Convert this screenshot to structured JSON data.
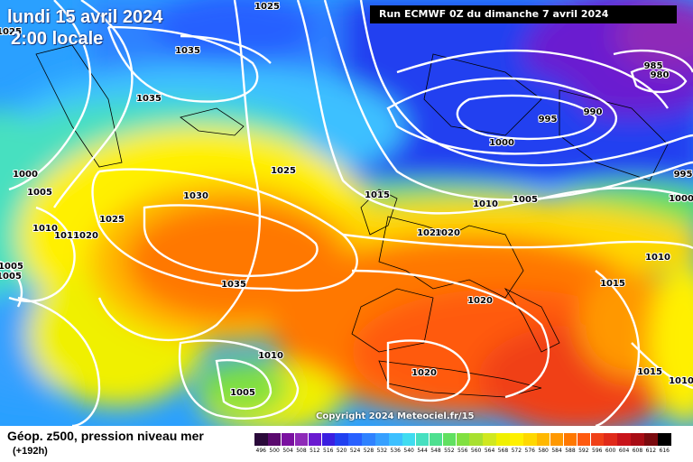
{
  "header": {
    "date_title": "lundi 15 avril 2024",
    "local_time": "2:00 locale",
    "run_info": "Run ECMWF 0Z du dimanche 7 avril 2024",
    "copyright": "Copyright 2024 Meteociel.fr/15"
  },
  "legend": {
    "title": "Géop. z500, pression niveau mer",
    "subtitle": "(+192h)",
    "scale_values": [
      "496",
      "500",
      "504",
      "508",
      "512",
      "516",
      "520",
      "524",
      "528",
      "532",
      "536",
      "540",
      "544",
      "548",
      "552",
      "556",
      "560",
      "564",
      "568",
      "572",
      "576",
      "580",
      "584",
      "588",
      "592",
      "596",
      "600",
      "604",
      "608",
      "612",
      "616"
    ],
    "scale_colors": [
      "#2a0a3a",
      "#5a0a6e",
      "#7a10a0",
      "#8e2ab8",
      "#6a1ad0",
      "#3a1ee0",
      "#2040f0",
      "#2860ff",
      "#2f82ff",
      "#36a0ff",
      "#3cc0ff",
      "#40dcf0",
      "#46e0c0",
      "#4ee090",
      "#60e060",
      "#80e040",
      "#a8e030",
      "#d0e820",
      "#f0f000",
      "#fff000",
      "#ffd800",
      "#ffb800",
      "#ff9800",
      "#ff7800",
      "#ff5a10",
      "#f04018",
      "#e02a1a",
      "#c8141a",
      "#a80c14",
      "#7a0a0e",
      "#000000"
    ]
  },
  "isobars": [
    {
      "label": "1025",
      "color": "#ffffff"
    },
    {
      "label": "1025",
      "color": "#ffffff"
    },
    {
      "label": "1035",
      "color": "#ffffff"
    },
    {
      "label": "1035",
      "color": "#ffffff"
    },
    {
      "label": "1000",
      "color": "#ffffff"
    },
    {
      "label": "1005",
      "color": "#ffffff"
    },
    {
      "label": "1010",
      "color": "#ffffff"
    },
    {
      "label": "1015",
      "color": "#ffffff"
    },
    {
      "label": "1020",
      "color": "#ffffff"
    },
    {
      "label": "1025",
      "color": "#ffffff"
    },
    {
      "label": "1005",
      "color": "#ffffff"
    },
    {
      "label": "1005",
      "color": "#ffffff"
    },
    {
      "label": "1030",
      "color": "#ffffff"
    },
    {
      "label": "1025",
      "color": "#ffffff"
    },
    {
      "label": "1035",
      "color": "#ffffff"
    },
    {
      "label": "1010",
      "color": "#ffffff"
    },
    {
      "label": "1005",
      "color": "#ffffff"
    },
    {
      "label": "1015",
      "color": "#ffffff"
    },
    {
      "label": "1020",
      "color": "#ffffff"
    },
    {
      "label": "1020",
      "color": "#ffffff"
    },
    {
      "label": "1010",
      "color": "#ffffff"
    },
    {
      "label": "1005",
      "color": "#ffffff"
    },
    {
      "label": "1000",
      "color": "#ffffff"
    },
    {
      "label": "995",
      "color": "#ffffff"
    },
    {
      "label": "990",
      "color": "#ffffff"
    },
    {
      "label": "985",
      "color": "#ffffff"
    },
    {
      "label": "980",
      "color": "#ffffff"
    },
    {
      "label": "995",
      "color": "#ffffff"
    },
    {
      "label": "1000",
      "color": "#ffffff"
    },
    {
      "label": "1010",
      "color": "#ffffff"
    },
    {
      "label": "1015",
      "color": "#ffffff"
    },
    {
      "label": "1015",
      "color": "#ffffff"
    },
    {
      "label": "1020",
      "color": "#ffffff"
    },
    {
      "label": "1020",
      "color": "#ffffff"
    },
    {
      "label": "1010",
      "color": "#ffffff"
    }
  ]
}
